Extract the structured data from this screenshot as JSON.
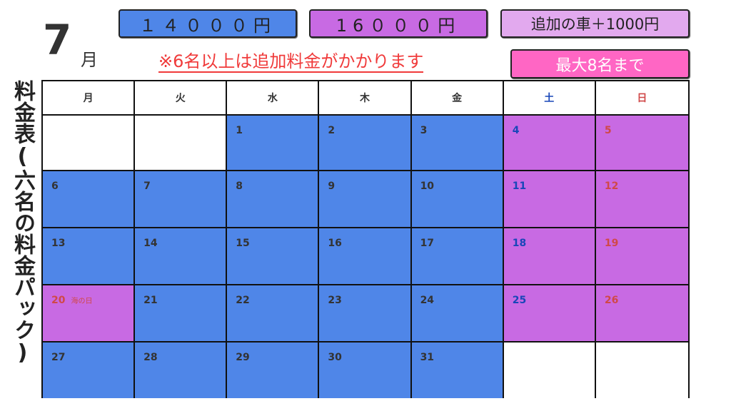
{
  "header": {
    "month": "7",
    "month_unit": "月"
  },
  "prices": {
    "weekday": "１４０００円",
    "weekend": "16０００円",
    "extra_car": "追加の車＋1000円",
    "capacity": "最大8名まで"
  },
  "notice": "※6名以上は追加料金がかかります",
  "side_title": "料金表(六名の料金パック)",
  "colors": {
    "weekday": "#4f86e8",
    "weekend": "#c86ae3",
    "extra": "#e2a9ee",
    "capacity": "#ff66c4",
    "saturday_text": "#1846b8",
    "sunday_text": "#d04848"
  },
  "calendar": {
    "weekdays": [
      "月",
      "火",
      "水",
      "木",
      "金",
      "土",
      "日"
    ],
    "weeks": [
      [
        null,
        null,
        {
          "d": "1",
          "t": "weekday"
        },
        {
          "d": "2",
          "t": "weekday"
        },
        {
          "d": "3",
          "t": "weekday"
        },
        {
          "d": "4",
          "t": "weekend"
        },
        {
          "d": "5",
          "t": "weekend"
        }
      ],
      [
        {
          "d": "6",
          "t": "weekday"
        },
        {
          "d": "7",
          "t": "weekday"
        },
        {
          "d": "8",
          "t": "weekday"
        },
        {
          "d": "9",
          "t": "weekday"
        },
        {
          "d": "10",
          "t": "weekday"
        },
        {
          "d": "11",
          "t": "weekend"
        },
        {
          "d": "12",
          "t": "weekend"
        }
      ],
      [
        {
          "d": "13",
          "t": "weekday"
        },
        {
          "d": "14",
          "t": "weekday"
        },
        {
          "d": "15",
          "t": "weekday"
        },
        {
          "d": "16",
          "t": "weekday"
        },
        {
          "d": "17",
          "t": "weekday"
        },
        {
          "d": "18",
          "t": "weekend"
        },
        {
          "d": "19",
          "t": "weekend"
        }
      ],
      [
        {
          "d": "20",
          "t": "weekend",
          "holiday": "海の日"
        },
        {
          "d": "21",
          "t": "weekday"
        },
        {
          "d": "22",
          "t": "weekday"
        },
        {
          "d": "23",
          "t": "weekday"
        },
        {
          "d": "24",
          "t": "weekday"
        },
        {
          "d": "25",
          "t": "weekend"
        },
        {
          "d": "26",
          "t": "weekend"
        }
      ],
      [
        {
          "d": "27",
          "t": "weekday"
        },
        {
          "d": "28",
          "t": "weekday"
        },
        {
          "d": "29",
          "t": "weekday"
        },
        {
          "d": "30",
          "t": "weekday"
        },
        {
          "d": "31",
          "t": "weekday"
        },
        null,
        null
      ]
    ]
  }
}
